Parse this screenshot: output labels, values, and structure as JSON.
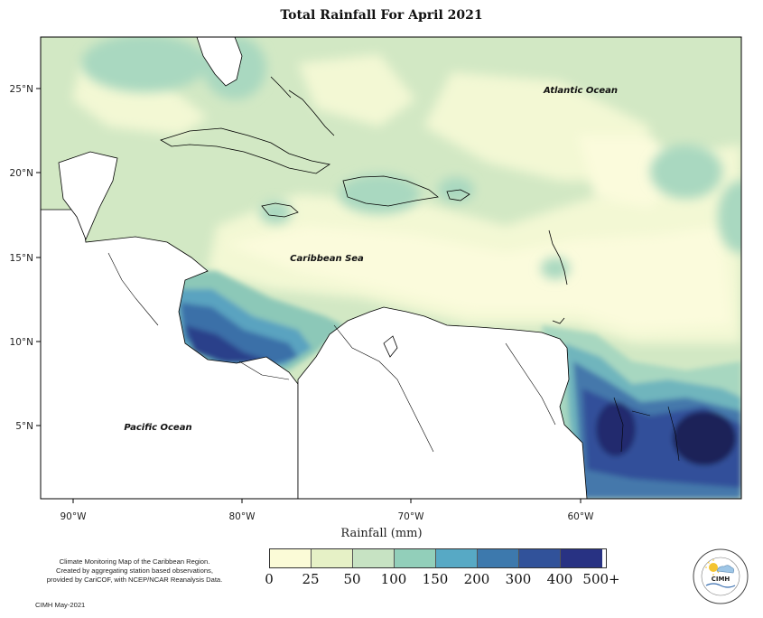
{
  "title": "Total Rainfall For April 2021",
  "x_axis_title": "Rainfall (mm)",
  "lat_ticks": [
    "25°N",
    "20°N",
    "15°N",
    "10°N",
    "5°N"
  ],
  "lon_ticks": [
    "90°W",
    "80°W",
    "70°W",
    "60°W"
  ],
  "ocean_labels": {
    "atlantic": "Atlantic Ocean",
    "caribbean": "Caribbean Sea",
    "pacific": "Pacific Ocean"
  },
  "legend": {
    "labels": [
      "0",
      "25",
      "50",
      "100",
      "150",
      "200",
      "300",
      "400",
      "500+"
    ],
    "colors": [
      "#fbfbd7",
      "#e6f1c6",
      "#c7e3c3",
      "#92cfba",
      "#57a9c5",
      "#3d79ad",
      "#31529a",
      "#283283",
      "#121a4d"
    ]
  },
  "credits": {
    "line1": "Climate Monitoring Map of the Caribbean Region.",
    "line2": "Created by aggregating station based observations,",
    "line3": "provided by CariCOF, with NCEP/NCAR Reanalysis Data.",
    "date": "CIMH May-2021"
  },
  "logo_text": "CIMH",
  "map_data": {
    "extent_lon": [
      -93,
      -52
    ],
    "extent_lat": [
      0.5,
      28
    ],
    "regions": [
      {
        "name": "South America (Venezuela/Guianas)",
        "rainfall": "200-500+ mm in eastern Guianas"
      },
      {
        "name": "Panama / Colombia coast",
        "rainfall": "300-400 mm"
      },
      {
        "name": "Lesser Antilles / eastern Caribbean",
        "rainfall": "0-50 mm"
      },
      {
        "name": "Bahamas / Florida",
        "rainfall": "50-100 mm"
      }
    ]
  }
}
